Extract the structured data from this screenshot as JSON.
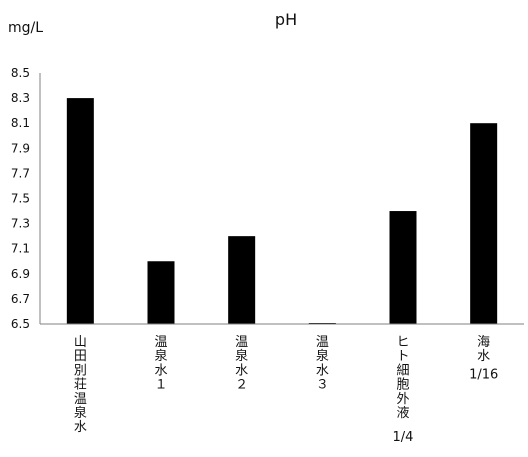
{
  "chart_data": {
    "type": "bar",
    "title": "pH",
    "ylabel": "mg/L",
    "xlabel": "",
    "categories": [
      "山田別荘温泉水",
      "温泉水１",
      "温泉水２",
      "温泉水３",
      "ヒト細胞外液",
      "海水"
    ],
    "category_sublabels": [
      "",
      "",
      "",
      "",
      "1/4",
      "1/16"
    ],
    "values": [
      8.3,
      7.0,
      7.2,
      6.5,
      7.4,
      8.1
    ],
    "ylim": [
      6.5,
      8.5
    ],
    "yticks": [
      "6.5",
      "6.7",
      "6.9",
      "7.1",
      "7.3",
      "7.5",
      "7.7",
      "7.9",
      "8.1",
      "8.3",
      "8.5"
    ],
    "grid": false,
    "legend": "none",
    "bar_color": "#000000"
  }
}
